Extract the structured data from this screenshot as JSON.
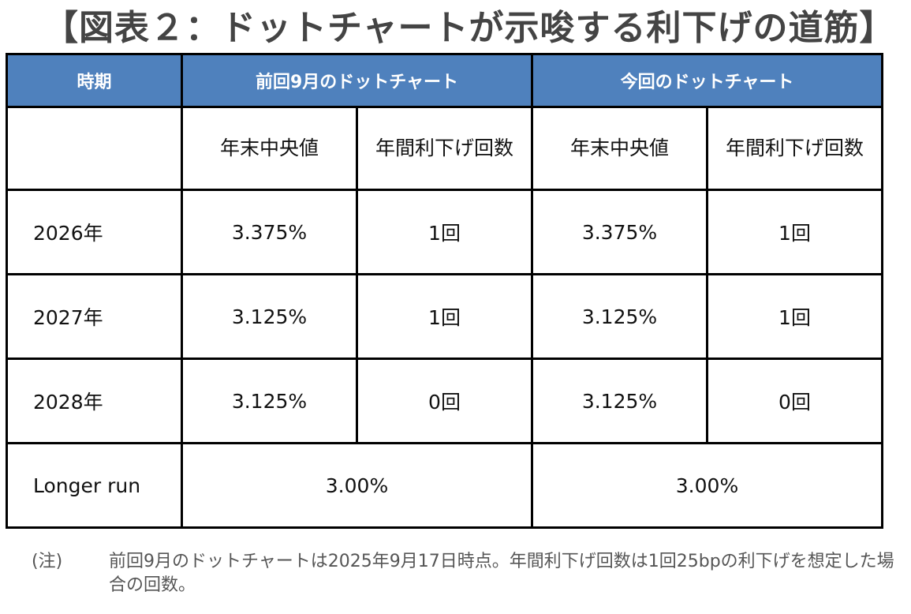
{
  "title": "【図表２：ドットチャートが示唆する利下げの道筋】",
  "table": {
    "header": {
      "period": "時期",
      "previous": "前回9月のドットチャート",
      "current": "今回のドットチャート"
    },
    "subheader": {
      "previous_median": "年末中央値",
      "previous_cuts": "年間利下げ回数",
      "current_median": "年末中央値",
      "current_cuts": "年間利下げ回数"
    },
    "rows": [
      {
        "period": "2026年",
        "prev_median": "3.375%",
        "prev_cuts": "1回",
        "curr_median": "3.375%",
        "curr_cuts": "1回"
      },
      {
        "period": "2027年",
        "prev_median": "3.125%",
        "prev_cuts": "1回",
        "curr_median": "3.125%",
        "curr_cuts": "1回"
      },
      {
        "period": "2028年",
        "prev_median": "3.125%",
        "prev_cuts": "0回",
        "curr_median": "3.125%",
        "curr_cuts": "0回"
      }
    ],
    "longer_run": {
      "period": "Longer run",
      "previous": "3.00%",
      "current": "3.00%"
    }
  },
  "note": {
    "label": "(注)",
    "text": "前回9月のドットチャートは2025年9月17日時点。年間利下げ回数は1回25bpの利下げを想定した場合の回数。"
  },
  "colors": {
    "header_bg": "#4f81bd",
    "header_text": "#ffffff",
    "title_text": "#444444"
  }
}
